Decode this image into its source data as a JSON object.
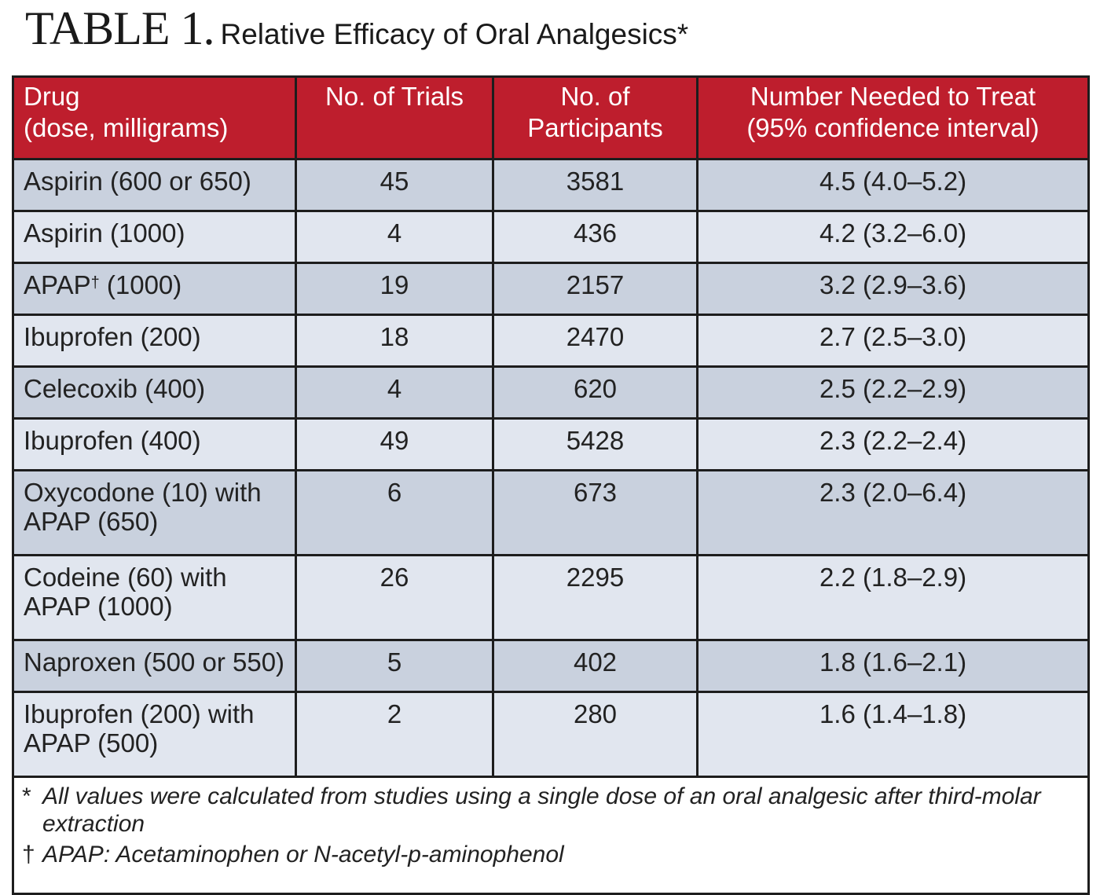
{
  "title": {
    "lead": "TABLE 1.",
    "text": "Relative Efficacy of Oral Analgesics*"
  },
  "colors": {
    "header_bg": "#be1e2d",
    "row_dark": "#c9d1de",
    "row_light": "#e1e6ef"
  },
  "table": {
    "headers": [
      {
        "line1": "Drug",
        "line2": "(dose, milligrams)"
      },
      {
        "line1": "No. of Trials",
        "line2": ""
      },
      {
        "line1": "No. of",
        "line2": "Participants"
      },
      {
        "line1": "Number Needed to Treat",
        "line2": "(95% confidence interval)"
      }
    ],
    "rows": [
      {
        "drug_l1": "Aspirin (600 or 650)",
        "drug_l2": "",
        "trials": "45",
        "participants": "3581",
        "nnt": "4.5 (4.0–5.2)"
      },
      {
        "drug_l1": "Aspirin (1000)",
        "drug_l2": "",
        "trials": "4",
        "participants": "436",
        "nnt": "4.2 (3.2–6.0)"
      },
      {
        "drug_l1": "APAP",
        "drug_sup": "†",
        "drug_after": " (1000)",
        "trials": "19",
        "participants": "2157",
        "nnt": "3.2 (2.9–3.6)"
      },
      {
        "drug_l1": "Ibuprofen (200)",
        "drug_l2": "",
        "trials": "18",
        "participants": "2470",
        "nnt": "2.7 (2.5–3.0)"
      },
      {
        "drug_l1": "Celecoxib (400)",
        "drug_l2": "",
        "trials": "4",
        "participants": "620",
        "nnt": "2.5 (2.2–2.9)"
      },
      {
        "drug_l1": "Ibuprofen (400)",
        "drug_l2": "",
        "trials": "49",
        "participants": "5428",
        "nnt": "2.3 (2.2–2.4)"
      },
      {
        "drug_l1": "Oxycodone (10) with",
        "drug_l2": "APAP (650)",
        "trials": "6",
        "participants": "673",
        "nnt": "2.3 (2.0–6.4)"
      },
      {
        "drug_l1": "Codeine (60) with",
        "drug_l2": "APAP (1000)",
        "trials": "26",
        "participants": "2295",
        "nnt": "2.2 (1.8–2.9)"
      },
      {
        "drug_l1": "Naproxen (500 or 550)",
        "drug_l2": "",
        "trials": "5",
        "participants": "402",
        "nnt": "1.8 (1.6–2.1)"
      },
      {
        "drug_l1": "Ibuprofen (200) with",
        "drug_l2": "APAP (500)",
        "trials": "2",
        "participants": "280",
        "nnt": "1.6 (1.4–1.8)"
      }
    ]
  },
  "footnotes": [
    {
      "marker": "*",
      "text": "All values were calculated from studies using a single dose of an oral analgesic after third-molar extraction"
    },
    {
      "marker": "†",
      "text": "APAP: Acetaminophen or N-acetyl-p-aminophenol"
    }
  ]
}
